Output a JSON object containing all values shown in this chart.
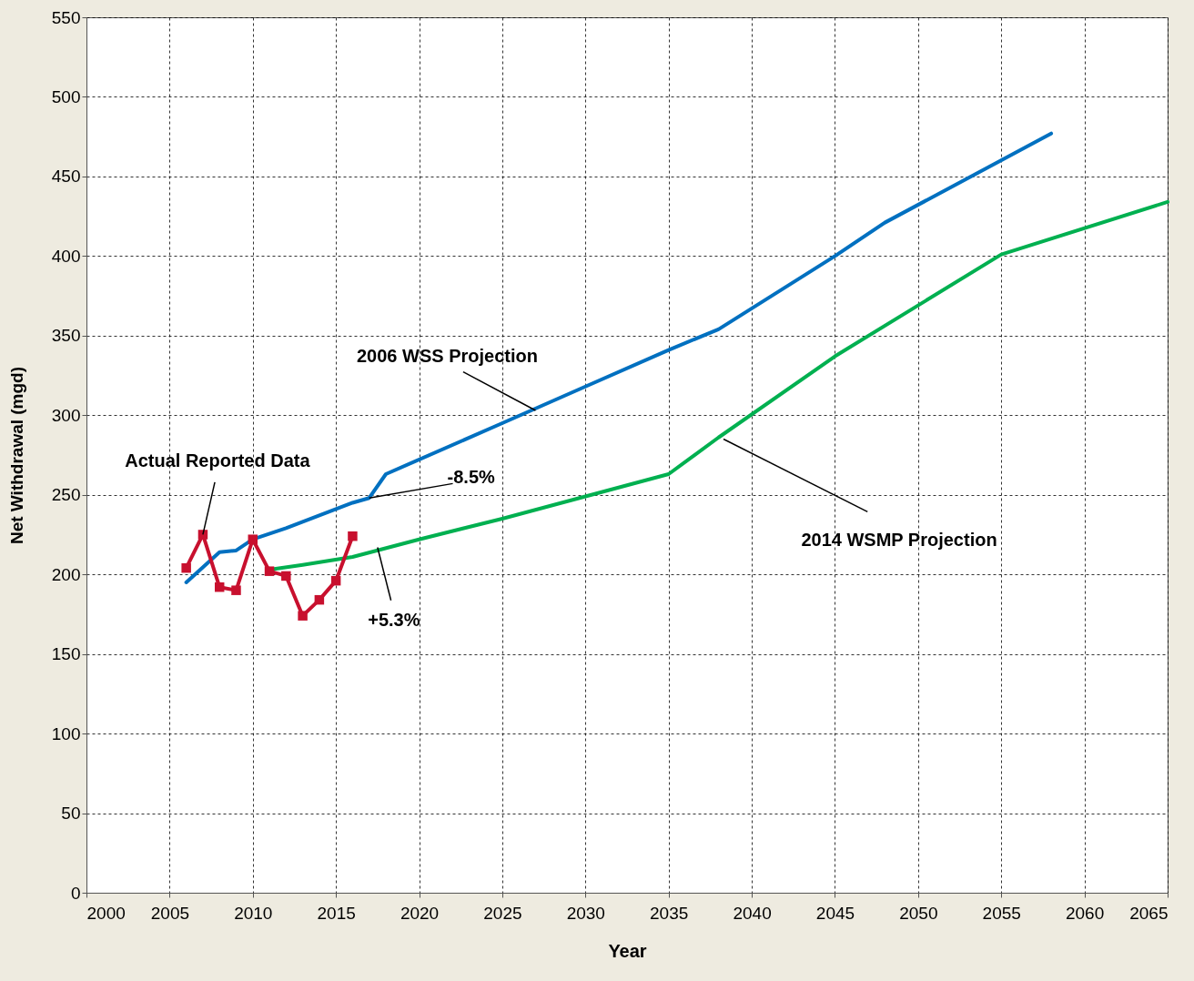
{
  "chart_data": {
    "type": "line",
    "xlabel": "Year",
    "ylabel": "Net Withdrawal (mgd)",
    "xlim": [
      2000,
      2065
    ],
    "xticks": [
      2000,
      2005,
      2010,
      2015,
      2020,
      2025,
      2030,
      2035,
      2040,
      2045,
      2050,
      2055,
      2060,
      2065
    ],
    "ylim": [
      0,
      550
    ],
    "yticks": [
      0,
      50,
      100,
      150,
      200,
      250,
      300,
      350,
      400,
      450,
      500,
      550
    ],
    "grid": true,
    "series": [
      {
        "color": "#0070c0",
        "x": [
          2006,
          2008,
          2009,
          2010,
          2012,
          2014,
          2016,
          2017,
          2018,
          2025,
          2030,
          2035,
          2038,
          2045,
          2048,
          2058
        ],
        "values": [
          195,
          214,
          215,
          222,
          229,
          237,
          245,
          248,
          263,
          295,
          318,
          341,
          354,
          400,
          421,
          477
        ]
      },
      {
        "color": "#00b050",
        "x": [
          2011,
          2013,
          2016,
          2020,
          2025,
          2030,
          2035,
          2038,
          2045,
          2055,
          2065
        ],
        "values": [
          203,
          206,
          211,
          222,
          235,
          249,
          263,
          286,
          337,
          401,
          434
        ]
      },
      {
        "color": "#c8102e",
        "marker": "square",
        "x": [
          2006,
          2007,
          2008,
          2009,
          2010,
          2011,
          2012,
          2013,
          2014,
          2015,
          2016
        ],
        "values": [
          204,
          225,
          192,
          190,
          222,
          202,
          199,
          174,
          184,
          196,
          224
        ]
      }
    ],
    "annotations": [
      {
        "text": "Actual Reported Data",
        "x": 2007,
        "y": 225
      },
      {
        "text": "2006 WSS Projection",
        "x": 2027,
        "y": 303
      },
      {
        "text": "2014 WSMP Projection",
        "x": 2038.3,
        "y": 285
      },
      {
        "text": "-8.5%",
        "x": 2017,
        "y": 248
      },
      {
        "text": "+5.3%",
        "x": 2017.5,
        "y": 217
      }
    ]
  }
}
